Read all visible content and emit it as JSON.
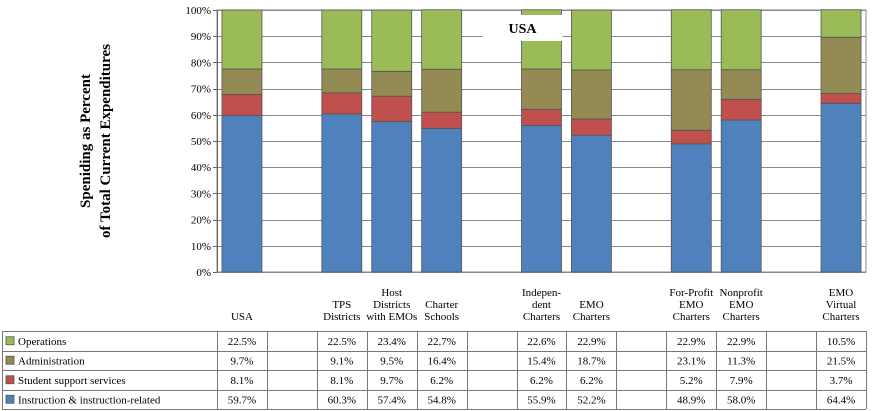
{
  "chart_data": {
    "type": "bar",
    "stacked": true,
    "title": "USA",
    "ylabel_lines": [
      "Speniding as Percent",
      "of Total  Current Expenditures"
    ],
    "yticks": [
      "0%",
      "10%",
      "20%",
      "30%",
      "40%",
      "50%",
      "60%",
      "70%",
      "80%",
      "90%",
      "100%"
    ],
    "ylim": [
      0,
      100
    ],
    "grid": true,
    "legend_placement": "data-table-left",
    "categories": [
      [
        "USA"
      ],
      [
        "TPS",
        "Districts"
      ],
      [
        "Host",
        "Districts",
        "with EMOs"
      ],
      [
        "Charter",
        "Schools"
      ],
      [
        "Indepen-",
        "dent",
        "Charters"
      ],
      [
        "EMO",
        "Charters"
      ],
      [
        "For-Profit",
        "EMO",
        "Charters"
      ],
      [
        "Nonprofit",
        "EMO",
        "Charters"
      ],
      [
        "EMO",
        "Virtual",
        "Charters"
      ]
    ],
    "slots": [
      0,
      2,
      3,
      4,
      6,
      7,
      9,
      10,
      12
    ],
    "slot_count": 13,
    "series": [
      {
        "name": "Instruction & instruction-related",
        "color": "#4F81BD",
        "values": [
          59.7,
          60.3,
          57.4,
          54.8,
          55.9,
          52.2,
          48.9,
          58.0,
          64.4
        ],
        "labels": [
          "59.7%",
          "60.3%",
          "57.4%",
          "54.8%",
          "55.9%",
          "52.2%",
          "48.9%",
          "58.0%",
          "64.4%"
        ]
      },
      {
        "name": "Student support services",
        "color": "#C0504D",
        "values": [
          8.1,
          8.1,
          9.7,
          6.2,
          6.2,
          6.2,
          5.2,
          7.9,
          3.7
        ],
        "labels": [
          "8.1%",
          "8.1%",
          "9.7%",
          "6.2%",
          "6.2%",
          "6.2%",
          "5.2%",
          "7.9%",
          "3.7%"
        ]
      },
      {
        "name": "Administration",
        "color": "#948A54",
        "values": [
          9.7,
          9.1,
          9.5,
          16.4,
          15.4,
          18.7,
          23.1,
          11.3,
          21.5
        ],
        "labels": [
          "9.7%",
          "9.1%",
          "9.5%",
          "16.4%",
          "15.4%",
          "18.7%",
          "23.1%",
          "11.3%",
          "21.5%"
        ]
      },
      {
        "name": "Operations",
        "color": "#9BBB59",
        "values": [
          22.5,
          22.5,
          23.4,
          22.7,
          22.6,
          22.9,
          22.9,
          22.9,
          10.5
        ],
        "labels": [
          "22.5%",
          "22.5%",
          "23.4%",
          "22.7%",
          "22.6%",
          "22.9%",
          "22.9%",
          "22.9%",
          "10.5%"
        ]
      }
    ]
  }
}
